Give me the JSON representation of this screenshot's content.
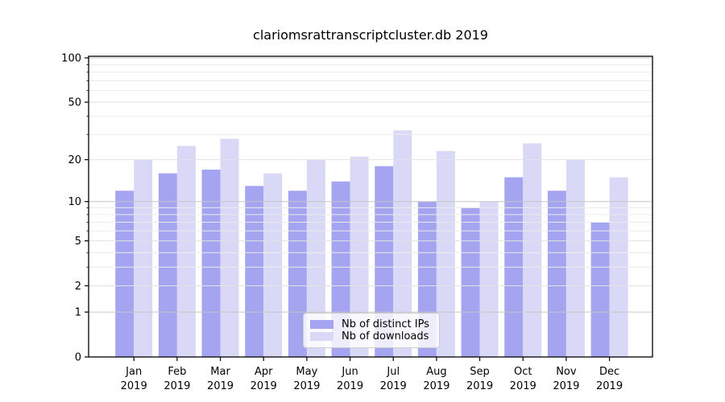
{
  "title": "clariomsrattranscriptcluster.db 2019",
  "colors": {
    "bar_distinct_ips": "#a4a4f0",
    "bar_downloads": "#d9d9f7",
    "grid_decade": "#c6c6c6",
    "grid_major": "#e2e2e2",
    "grid_minor": "#ececec",
    "axis": "#000000",
    "legend_border": "#cccccc",
    "background": "#ffffff"
  },
  "chart_data": {
    "type": "bar",
    "title": "clariomsrattranscriptcluster.db 2019",
    "categories": [
      "Jan",
      "Feb",
      "Mar",
      "Apr",
      "May",
      "Jun",
      "Jul",
      "Aug",
      "Sep",
      "Oct",
      "Nov",
      "Dec"
    ],
    "x_year_label": "2019",
    "series": [
      {
        "name": "Nb of distinct IPs",
        "color": "#a4a4f0",
        "values": [
          12,
          16,
          17,
          13,
          12,
          14,
          18,
          10,
          9,
          15,
          12,
          7
        ]
      },
      {
        "name": "Nb of downloads",
        "color": "#d9d9f7",
        "values": [
          20,
          25,
          28,
          16,
          20,
          21,
          32,
          23,
          10,
          26,
          20,
          15
        ]
      }
    ],
    "y_axis": {
      "scale": "log10(1+y)",
      "tick_labels": [
        0,
        1,
        2,
        5,
        10,
        20,
        50,
        100
      ],
      "decade_ticks": [
        1,
        10,
        100
      ],
      "minor_ticks": [
        3,
        4,
        6,
        7,
        8,
        9,
        30,
        40,
        60,
        70,
        80,
        90
      ],
      "ylim": [
        0,
        104
      ]
    },
    "legend_position": "lower center",
    "grid": true
  }
}
